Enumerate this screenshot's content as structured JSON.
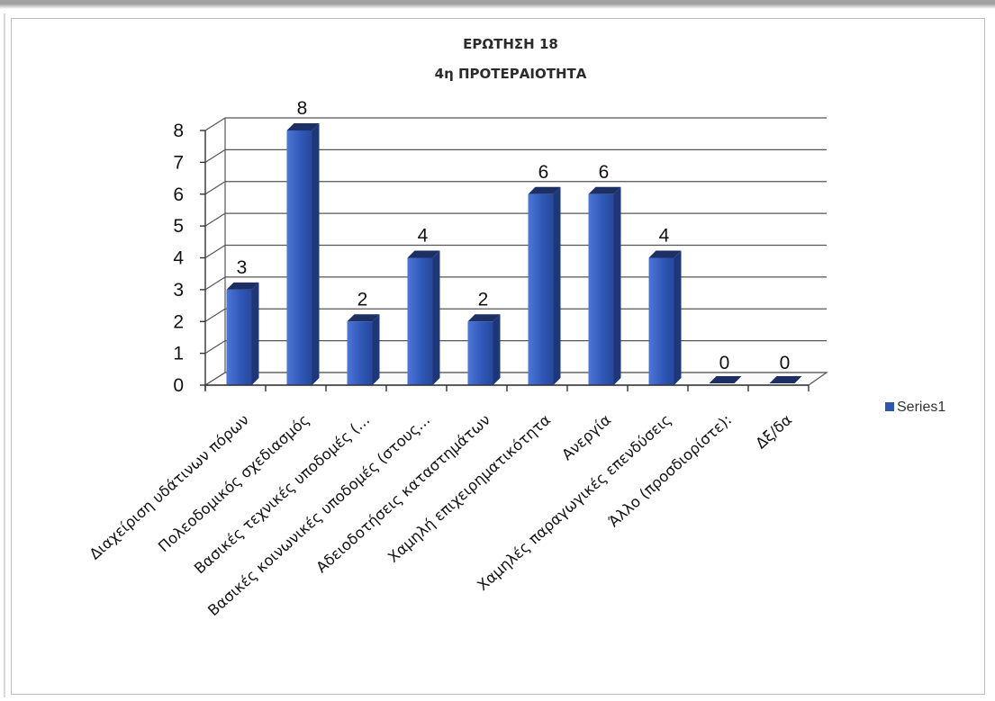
{
  "chart_data": {
    "type": "bar",
    "title": "ΕΡΩΤΗΣΗ 18",
    "subtitle": "4η ΠΡΟΤΕΡΑΙΟΤΗΤΑ",
    "categories": [
      "Διαχείριση υδάτινων πόρων",
      "Πολεοδομικός σχεδιασμός",
      "Βασικές τεχνικές υποδομές (...",
      "Βασικές κοινωνικές υποδομές (στους...",
      "Αδειοδοτήσεις καταστημάτων",
      "Χαμηλή επιχειρηματικότητα",
      "Ανεργία",
      "Χαμηλές παραγωγικές επενδύσεις",
      "Άλλο (προσδιορίστε):",
      "Δξ/δα"
    ],
    "series": [
      {
        "name": "Series1",
        "values": [
          3,
          8,
          2,
          4,
          2,
          6,
          6,
          4,
          0,
          0
        ],
        "color": "#2f55ad"
      }
    ],
    "data_labels": [
      "3",
      "8",
      "2",
      "4",
      "2",
      "6",
      "6",
      "4",
      "0",
      "0"
    ],
    "y_ticks": [
      "0",
      "1",
      "2",
      "3",
      "4",
      "5",
      "6",
      "7",
      "8"
    ],
    "ylim": [
      0,
      8
    ],
    "grid": true,
    "three_d": true,
    "legend_position": "right",
    "xlabel": "",
    "ylabel": ""
  }
}
